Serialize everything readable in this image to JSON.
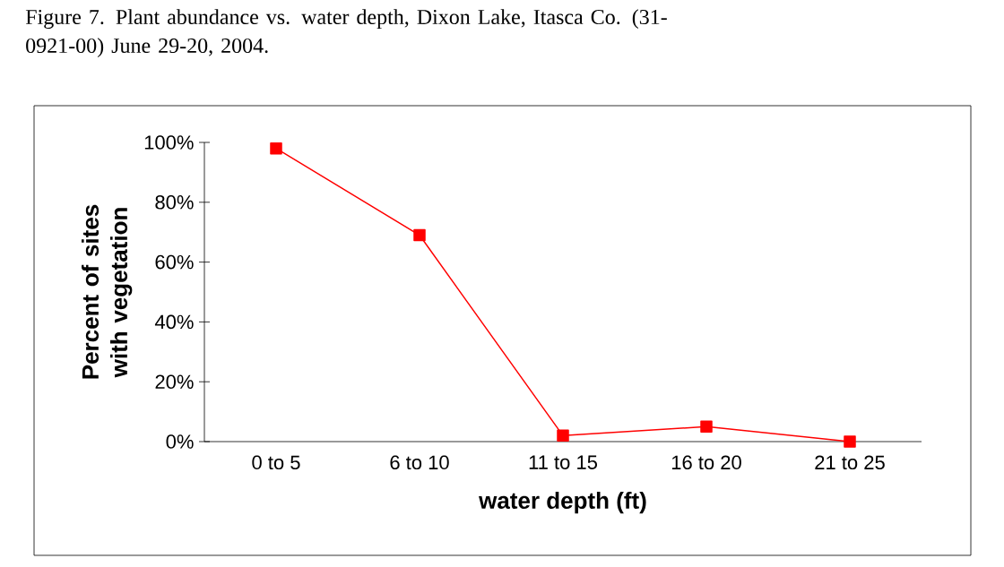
{
  "chart_data": {
    "type": "line",
    "title": "Figure 7. Plant abundance vs. water depth, Dixon Lake, Itasca Co. (31-0921-00) June 29-20, 2004.",
    "xlabel": "water depth (ft)",
    "ylabel": "Percent of sites with vegetation",
    "categories": [
      "0 to 5",
      "6 to 10",
      "11 to 15",
      "16 to 20",
      "21 to 25"
    ],
    "values": [
      98,
      69,
      2,
      5,
      0
    ],
    "color": "#ff0000",
    "marker": "square",
    "line_style": "solid",
    "ylim": [
      0,
      100
    ],
    "yticks": [
      {
        "value": 0,
        "label": "0%"
      },
      {
        "value": 20,
        "label": "20%"
      },
      {
        "value": 40,
        "label": "40%"
      },
      {
        "value": 60,
        "label": "60%"
      },
      {
        "value": 80,
        "label": "80%"
      },
      {
        "value": 100,
        "label": "100%"
      }
    ]
  }
}
